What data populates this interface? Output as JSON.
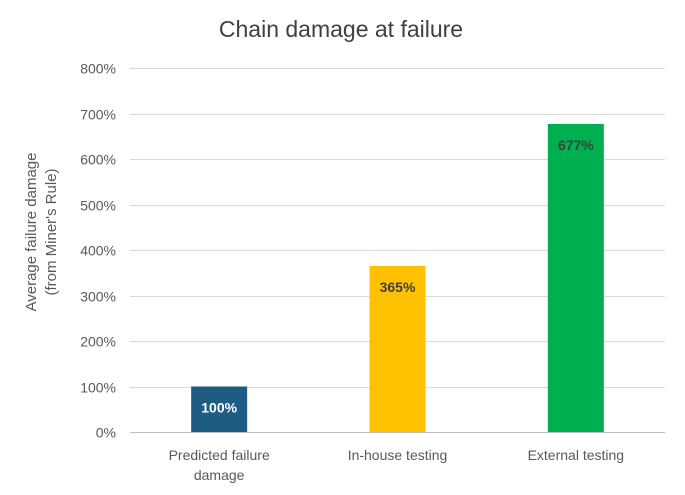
{
  "chart_data": {
    "type": "bar",
    "title": "Chain damage at failure",
    "xlabel": "",
    "ylabel": [
      "Average failure damage",
      "(from Miner's Rule)"
    ],
    "ylim": [
      0,
      800
    ],
    "yticks": [
      0,
      100,
      200,
      300,
      400,
      500,
      600,
      700,
      800
    ],
    "ytick_labels": [
      "0%",
      "100%",
      "200%",
      "300%",
      "400%",
      "500%",
      "600%",
      "700%",
      "800%"
    ],
    "grid": true,
    "legend": "none",
    "categories": [
      [
        "Predicted failure",
        "damage"
      ],
      [
        "In-house testing"
      ],
      [
        "External testing"
      ]
    ],
    "values": [
      100,
      365,
      677
    ],
    "data_labels": [
      "100%",
      "365%",
      "677%"
    ],
    "colors": [
      "#1f5c84",
      "#ffc000",
      "#00b050"
    ],
    "label_colors": [
      "#ffffff",
      "#404040",
      "#404040"
    ]
  }
}
